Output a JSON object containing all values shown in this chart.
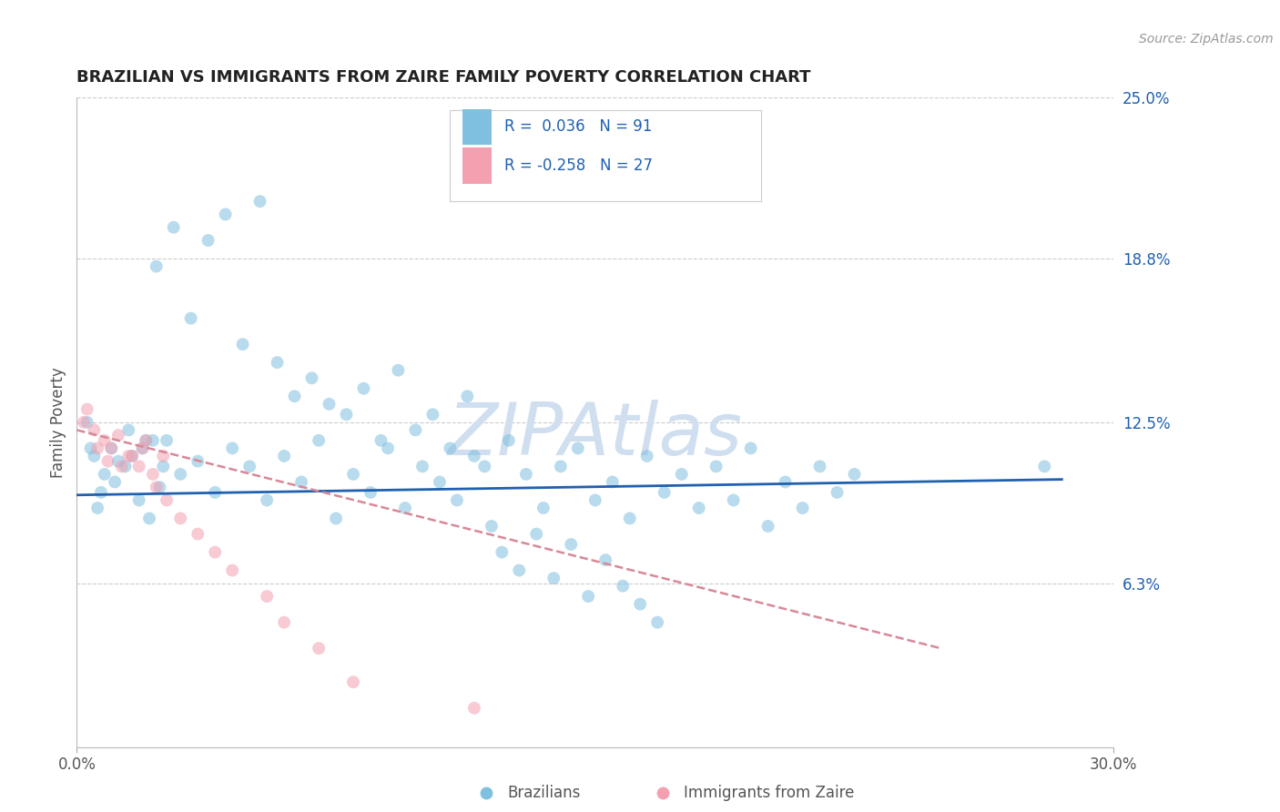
{
  "title": "BRAZILIAN VS IMMIGRANTS FROM ZAIRE FAMILY POVERTY CORRELATION CHART",
  "source_text": "Source: ZipAtlas.com",
  "ylabel": "Family Poverty",
  "xlim": [
    0.0,
    0.3
  ],
  "ylim": [
    0.0,
    0.25
  ],
  "xticks": [
    0.0,
    0.3
  ],
  "xticklabels": [
    "0.0%",
    "30.0%"
  ],
  "ytick_vals": [
    0.0,
    0.063,
    0.125,
    0.188,
    0.25
  ],
  "ytick_labels": [
    "",
    "6.3%",
    "12.5%",
    "18.8%",
    "25.0%"
  ],
  "legend_entry1": "R =  0.036   N = 91",
  "legend_entry2": "R = -0.258   N = 27",
  "legend_label1": "Brazilians",
  "legend_label2": "Immigrants from Zaire",
  "color_blue": "#7fbfdf",
  "color_pink": "#f4a0b0",
  "trendline_blue": "#2060b0",
  "trendline_pink": "#d88898",
  "watermark_color": "#d0dff0",
  "background_color": "#ffffff",
  "grid_color": "#cccccc",
  "scatter_alpha": 0.55,
  "scatter_size": 100,
  "brazilians_x": [
    0.01,
    0.02,
    0.025,
    0.005,
    0.015,
    0.008,
    0.012,
    0.018,
    0.022,
    0.003,
    0.007,
    0.014,
    0.019,
    0.024,
    0.006,
    0.011,
    0.016,
    0.021,
    0.026,
    0.004,
    0.03,
    0.035,
    0.04,
    0.045,
    0.05,
    0.055,
    0.06,
    0.065,
    0.07,
    0.075,
    0.08,
    0.085,
    0.09,
    0.095,
    0.1,
    0.105,
    0.11,
    0.115,
    0.12,
    0.125,
    0.13,
    0.135,
    0.14,
    0.145,
    0.15,
    0.155,
    0.16,
    0.165,
    0.17,
    0.175,
    0.18,
    0.185,
    0.19,
    0.195,
    0.2,
    0.205,
    0.21,
    0.215,
    0.22,
    0.225,
    0.023,
    0.028,
    0.033,
    0.038,
    0.043,
    0.048,
    0.053,
    0.058,
    0.063,
    0.068,
    0.073,
    0.078,
    0.083,
    0.088,
    0.093,
    0.098,
    0.103,
    0.108,
    0.113,
    0.118,
    0.123,
    0.128,
    0.133,
    0.138,
    0.143,
    0.148,
    0.153,
    0.158,
    0.163,
    0.168,
    0.28
  ],
  "brazilians_y": [
    0.115,
    0.118,
    0.108,
    0.112,
    0.122,
    0.105,
    0.11,
    0.095,
    0.118,
    0.125,
    0.098,
    0.108,
    0.115,
    0.1,
    0.092,
    0.102,
    0.112,
    0.088,
    0.118,
    0.115,
    0.105,
    0.11,
    0.098,
    0.115,
    0.108,
    0.095,
    0.112,
    0.102,
    0.118,
    0.088,
    0.105,
    0.098,
    0.115,
    0.092,
    0.108,
    0.102,
    0.095,
    0.112,
    0.085,
    0.118,
    0.105,
    0.092,
    0.108,
    0.115,
    0.095,
    0.102,
    0.088,
    0.112,
    0.098,
    0.105,
    0.092,
    0.108,
    0.095,
    0.115,
    0.085,
    0.102,
    0.092,
    0.108,
    0.098,
    0.105,
    0.185,
    0.2,
    0.165,
    0.195,
    0.205,
    0.155,
    0.21,
    0.148,
    0.135,
    0.142,
    0.132,
    0.128,
    0.138,
    0.118,
    0.145,
    0.122,
    0.128,
    0.115,
    0.135,
    0.108,
    0.075,
    0.068,
    0.082,
    0.065,
    0.078,
    0.058,
    0.072,
    0.062,
    0.055,
    0.048,
    0.108
  ],
  "zaire_x": [
    0.002,
    0.005,
    0.008,
    0.01,
    0.012,
    0.015,
    0.018,
    0.02,
    0.022,
    0.025,
    0.003,
    0.006,
    0.009,
    0.013,
    0.016,
    0.019,
    0.023,
    0.026,
    0.03,
    0.035,
    0.04,
    0.045,
    0.055,
    0.06,
    0.07,
    0.08,
    0.115
  ],
  "zaire_y": [
    0.125,
    0.122,
    0.118,
    0.115,
    0.12,
    0.112,
    0.108,
    0.118,
    0.105,
    0.112,
    0.13,
    0.115,
    0.11,
    0.108,
    0.112,
    0.115,
    0.1,
    0.095,
    0.088,
    0.082,
    0.075,
    0.068,
    0.058,
    0.048,
    0.038,
    0.025,
    0.015
  ],
  "blue_trend_x": [
    0.0,
    0.285
  ],
  "blue_trend_y": [
    0.097,
    0.103
  ],
  "pink_trend_x": [
    0.0,
    0.25
  ],
  "pink_trend_y": [
    0.122,
    0.038
  ]
}
